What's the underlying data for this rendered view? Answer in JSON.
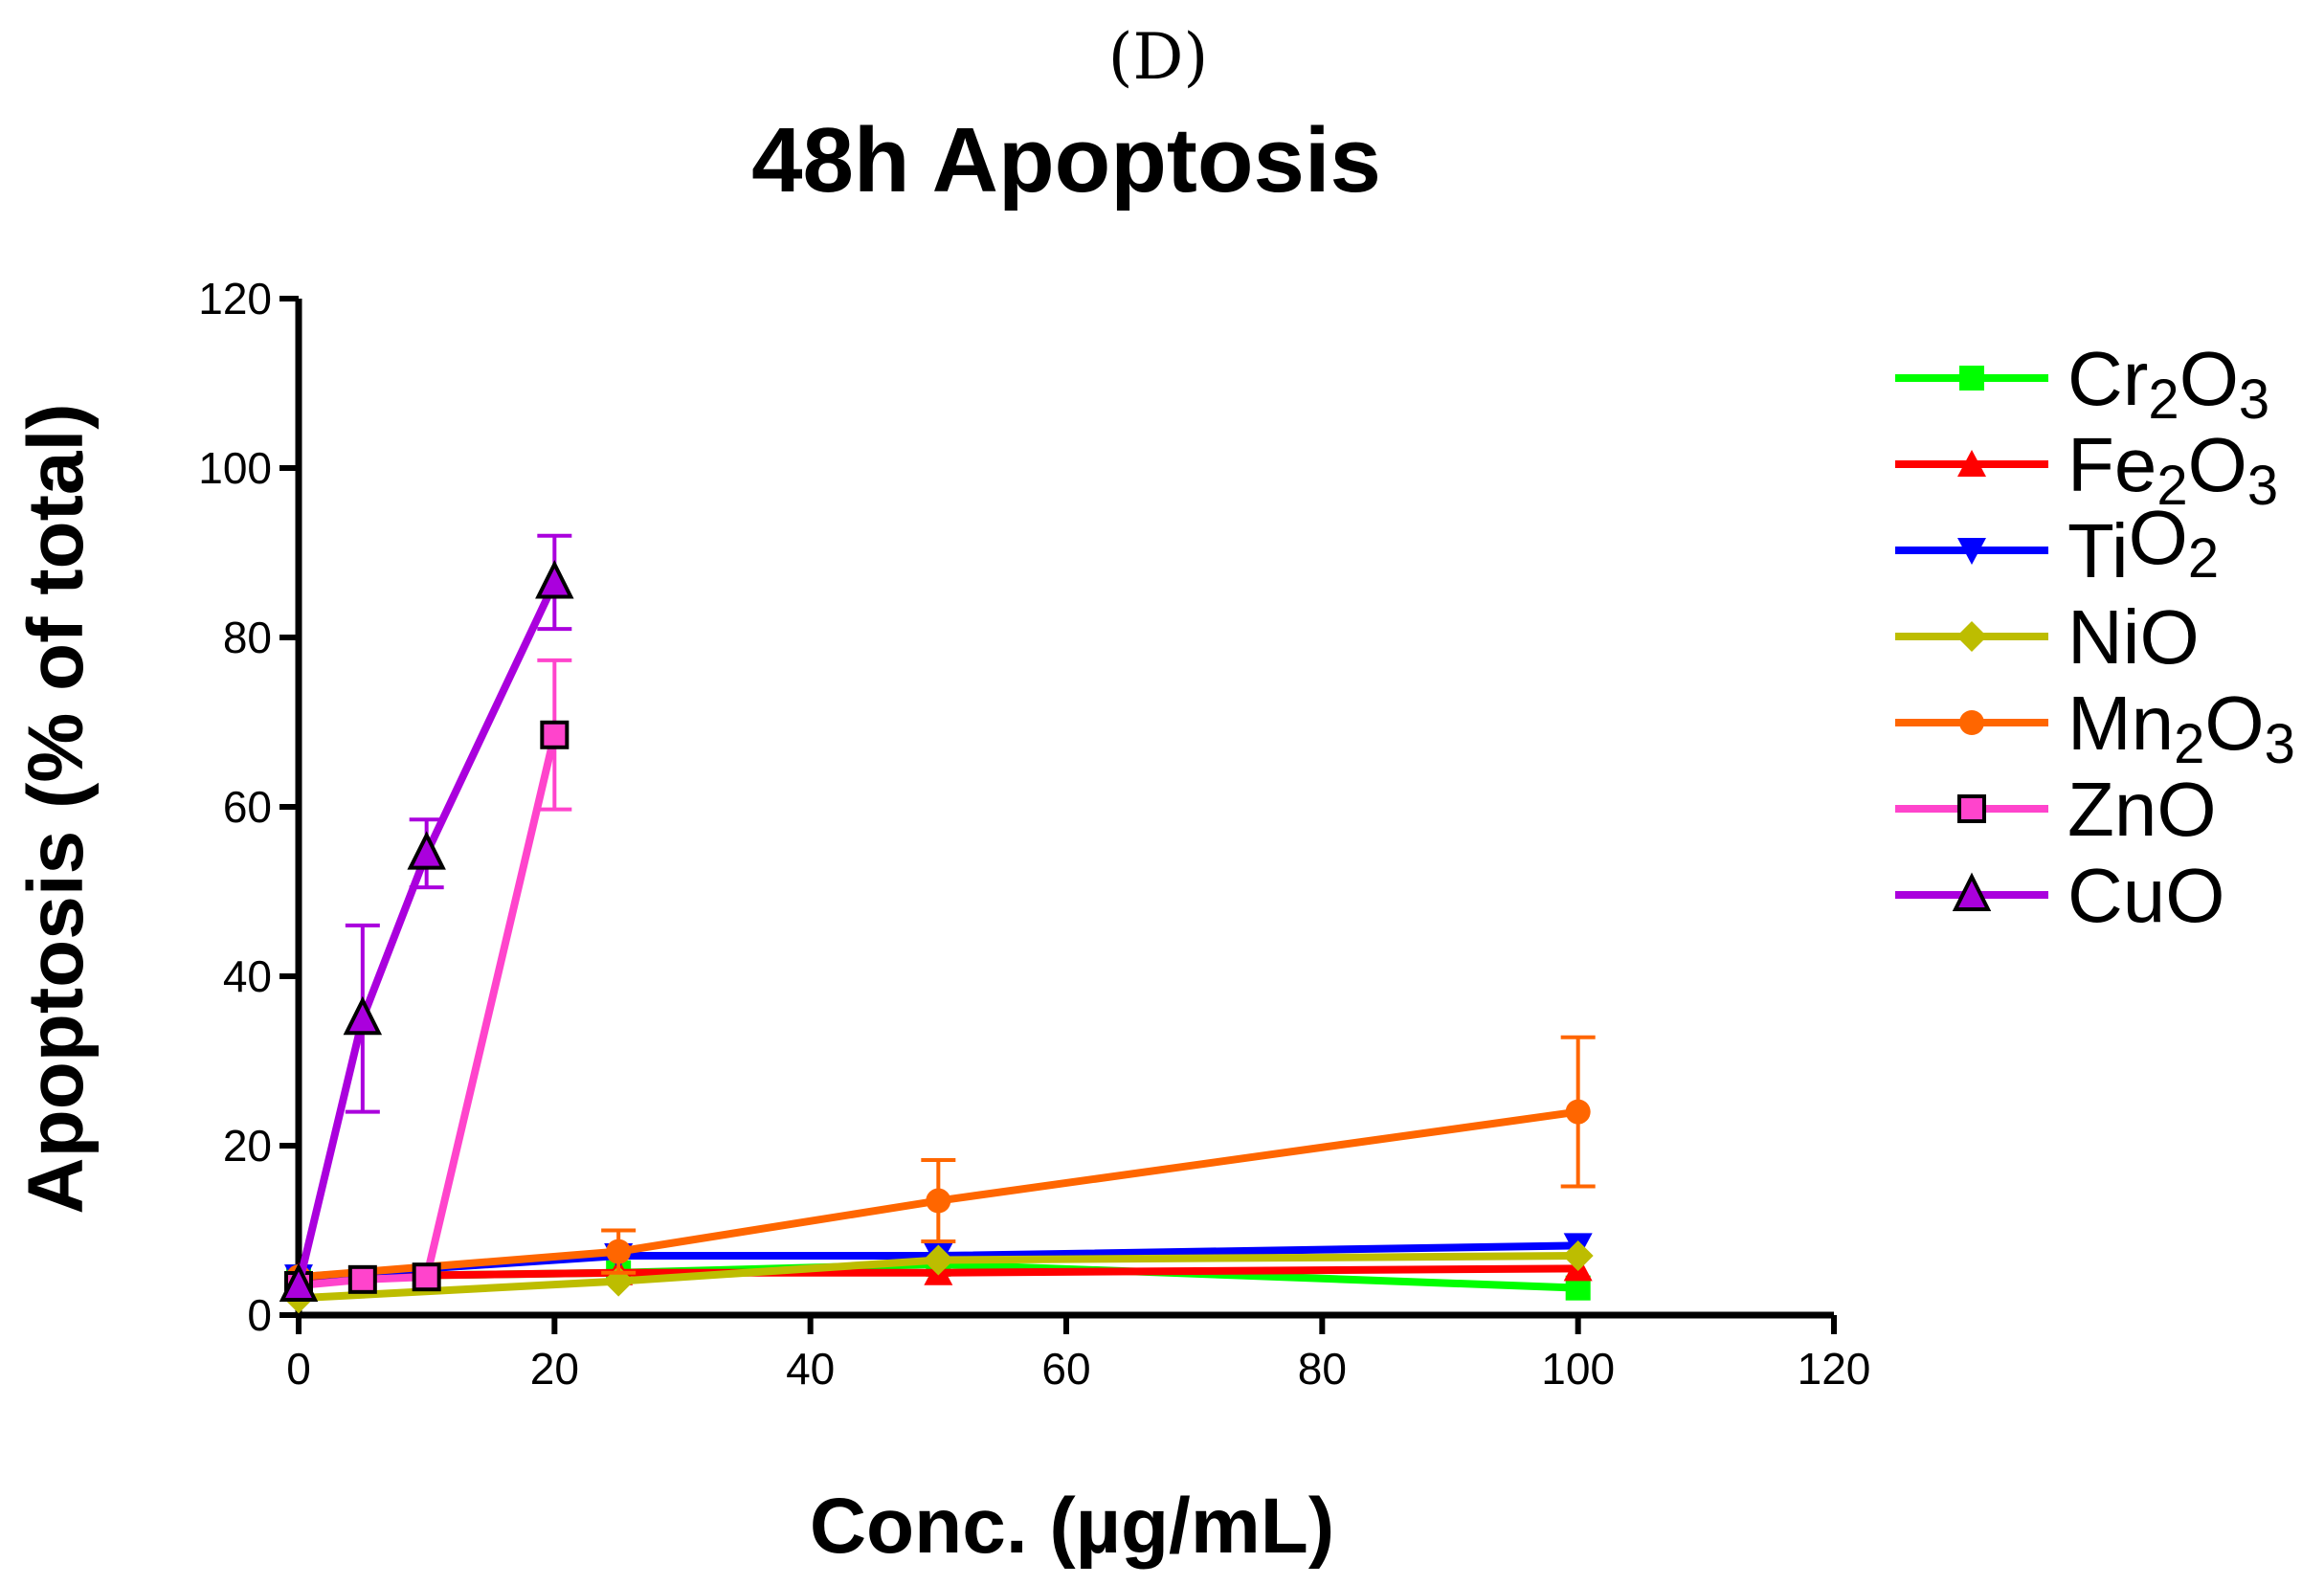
{
  "panel_label": "(D)",
  "chart_data": {
    "type": "line",
    "title": "48h Apoptosis",
    "xlabel": "Conc. (µg/mL)",
    "ylabel": "Apoptosis (% of total)",
    "xlim": [
      0,
      120
    ],
    "ylim": [
      0,
      120
    ],
    "xticks": [
      0,
      20,
      40,
      60,
      80,
      100,
      120
    ],
    "yticks": [
      0,
      20,
      40,
      60,
      80,
      100,
      120
    ],
    "grid": false,
    "legend_position": "right",
    "series": [
      {
        "name": "Cr2O3",
        "label": "Cr",
        "sub1": "2",
        "mid": "O",
        "sub2": "3",
        "color": "#00ff00",
        "marker": "square",
        "x": [
          0,
          25,
          50,
          100
        ],
        "values": [
          4.5,
          5,
          6,
          3.2
        ],
        "errors": [
          0,
          0,
          0,
          0
        ]
      },
      {
        "name": "Fe2O3",
        "label": "Fe",
        "sub1": "2",
        "mid": "O",
        "sub2": "3",
        "color": "#ff0000",
        "marker": "triangle-up",
        "x": [
          0,
          25,
          50,
          100
        ],
        "values": [
          4.5,
          5,
          5,
          5.5
        ],
        "errors": [
          0,
          0,
          0,
          0
        ]
      },
      {
        "name": "TiO2",
        "label": "Ti",
        "sub1": "",
        "mid": "O",
        "sub2": "2",
        "color": "#0000ff",
        "marker": "triangle-down",
        "x": [
          0,
          25,
          50,
          100
        ],
        "values": [
          4.5,
          7,
          7,
          8.2
        ],
        "errors": [
          0,
          0,
          0,
          0
        ]
      },
      {
        "name": "NiO",
        "label": "NiO",
        "sub1": "",
        "mid": "",
        "sub2": "",
        "color": "#bdbd00",
        "marker": "diamond",
        "x": [
          0,
          25,
          50,
          100
        ],
        "values": [
          2,
          4,
          6.5,
          7
        ],
        "errors": [
          0,
          0,
          0,
          0
        ]
      },
      {
        "name": "Mn2O3",
        "label": "Mn",
        "sub1": "2",
        "mid": "O",
        "sub2": "3",
        "color": "#ff6600",
        "marker": "circle",
        "x": [
          0,
          25,
          50,
          100
        ],
        "values": [
          4.5,
          7.5,
          13.5,
          24
        ],
        "errors": [
          0,
          2.5,
          4.8,
          8.8
        ]
      },
      {
        "name": "ZnO",
        "label": "ZnO",
        "sub1": "",
        "mid": "",
        "sub2": "",
        "color": "#ff44cc",
        "marker": "square-open",
        "x": [
          0,
          5,
          10,
          20
        ],
        "values": [
          3.5,
          4.2,
          4.5,
          68.5
        ],
        "errors": [
          0,
          0,
          0,
          8.8
        ]
      },
      {
        "name": "CuO",
        "label": "CuO",
        "sub1": "",
        "mid": "",
        "sub2": "",
        "color": "#aa00dd",
        "marker": "triangle-open",
        "x": [
          0,
          5,
          10,
          20
        ],
        "values": [
          3.5,
          35,
          54.5,
          86.5
        ],
        "errors": [
          0,
          11,
          4,
          5.5
        ]
      }
    ]
  }
}
